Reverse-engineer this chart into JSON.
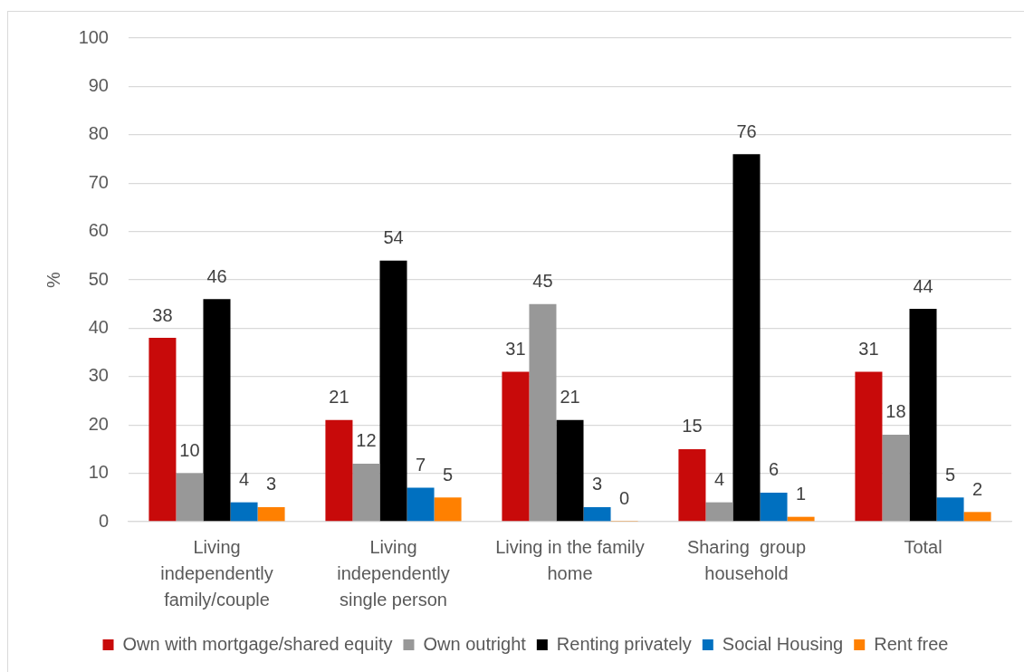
{
  "chart_data": {
    "type": "bar",
    "ylabel": "%",
    "categories": [
      "Living independently family/couple",
      "Living independently single person",
      "Living in the family home",
      "Sharing  group household",
      "Total"
    ],
    "series": [
      {
        "name": "Own with mortgage/shared equity",
        "color": "#c80a0a",
        "values": [
          38,
          21,
          31,
          15,
          31
        ]
      },
      {
        "name": "Own outright",
        "color": "#989898",
        "values": [
          10,
          12,
          45,
          4,
          18
        ]
      },
      {
        "name": "Renting privately",
        "color": "#000000",
        "values": [
          46,
          54,
          21,
          76,
          44
        ]
      },
      {
        "name": "Social Housing",
        "color": "#0070c0",
        "values": [
          4,
          7,
          3,
          6,
          5
        ]
      },
      {
        "name": "Rent free",
        "color": "#ff8000",
        "values": [
          3,
          5,
          0,
          1,
          2
        ]
      }
    ],
    "ylim": [
      0,
      100
    ],
    "yticks": [
      0,
      10,
      20,
      30,
      40,
      50,
      60,
      70,
      80,
      90,
      100
    ],
    "grid": "y",
    "legend": "bottom",
    "data_labels": true
  }
}
